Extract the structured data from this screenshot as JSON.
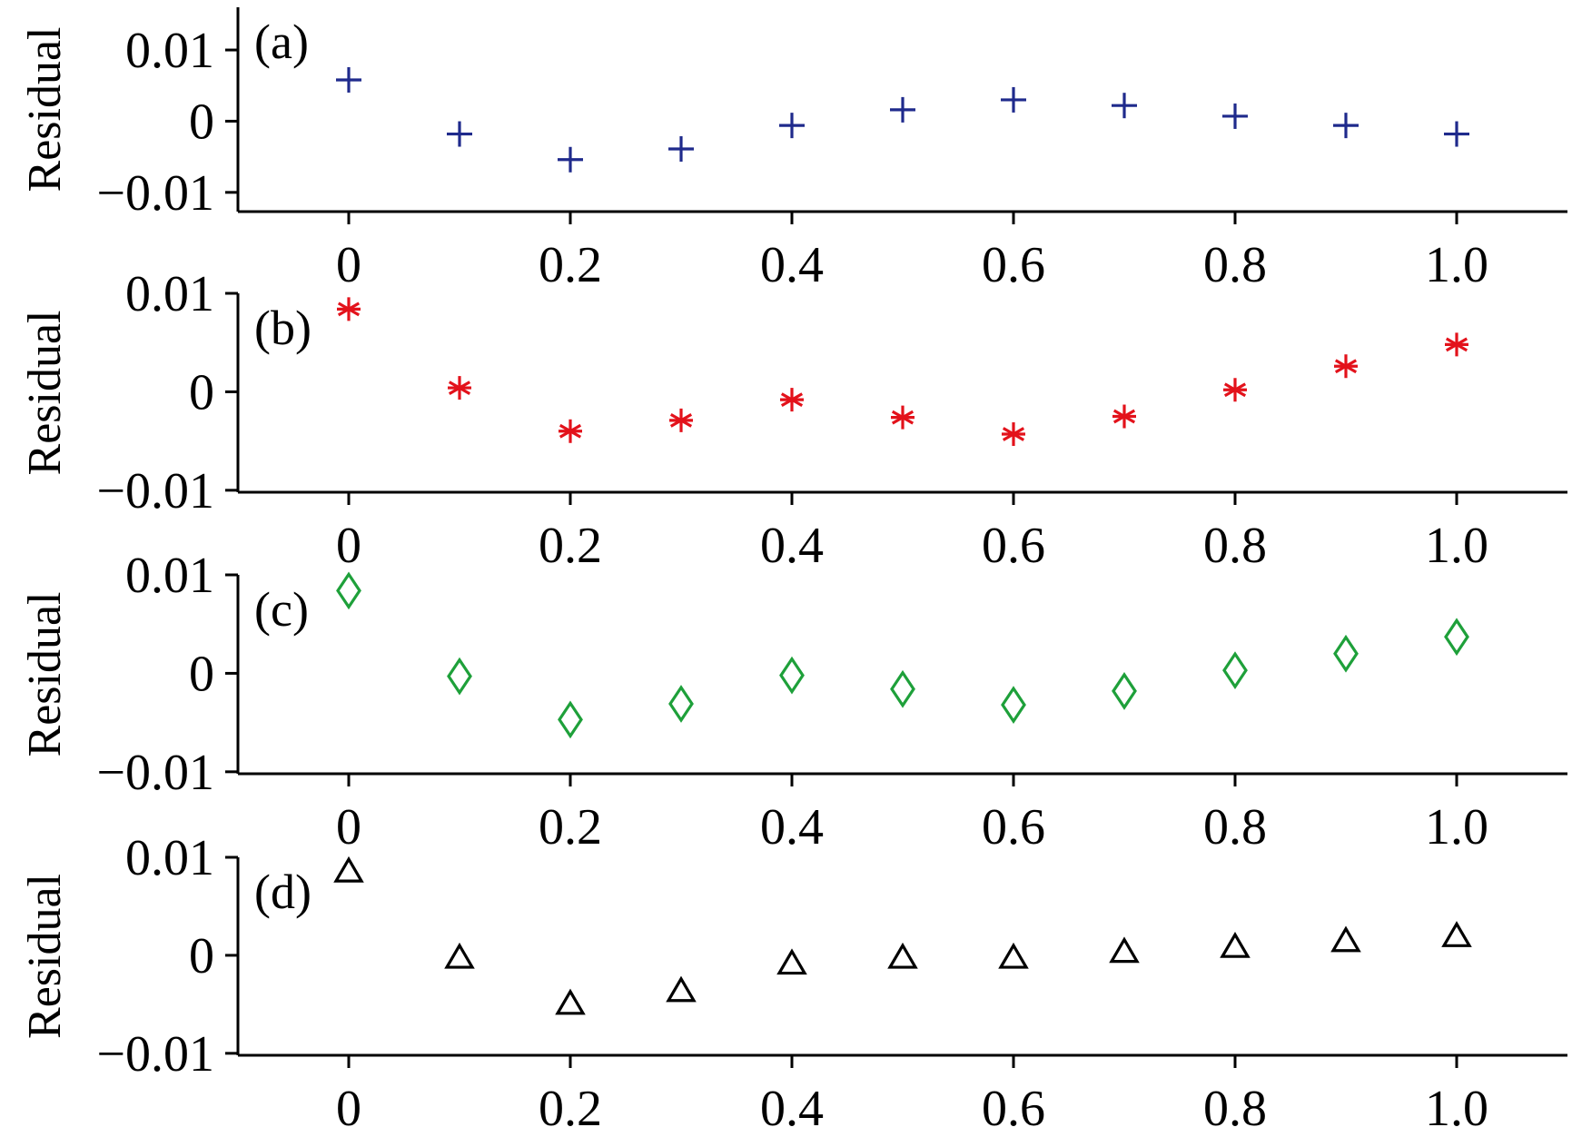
{
  "chart_data": [
    {
      "type": "scatter",
      "panel_label": "(a)",
      "ylabel": "Residual",
      "marker": "plus",
      "color": "#1f2a8c",
      "x": [
        0,
        0.1,
        0.2,
        0.3,
        0.4,
        0.5,
        0.6,
        0.7,
        0.8,
        0.9,
        1.0
      ],
      "y": [
        0.0058,
        -0.0018,
        -0.0054,
        -0.0039,
        -0.0006,
        0.0016,
        0.003,
        0.0022,
        0.0007,
        -0.0006,
        -0.0018
      ],
      "xlim": [
        -0.1,
        1.1
      ],
      "ylim": [
        -0.0127,
        0.016
      ],
      "xticks": [
        0,
        0.2,
        0.4,
        0.6,
        0.8,
        1.0
      ],
      "xtick_labels": [
        "0",
        "0.2",
        "0.4",
        "0.6",
        "0.8",
        "1.0"
      ],
      "yticks": [
        0.01,
        0,
        -0.01
      ],
      "ytick_labels": [
        "0.01",
        "0",
        "−0.01"
      ],
      "grid": false
    },
    {
      "type": "scatter",
      "panel_label": "(b)",
      "ylabel": "Residual",
      "marker": "asterisk",
      "color": "#e3121b",
      "x": [
        0,
        0.1,
        0.2,
        0.3,
        0.4,
        0.5,
        0.6,
        0.7,
        0.8,
        0.9,
        1.0
      ],
      "y": [
        0.0084,
        0.0004,
        -0.004,
        -0.0029,
        -0.0008,
        -0.0026,
        -0.0043,
        -0.0025,
        0.0002,
        0.0026,
        0.0048
      ],
      "xlim": [
        -0.1,
        1.1
      ],
      "ylim": [
        -0.0102,
        0.01
      ],
      "xticks": [
        0,
        0.2,
        0.4,
        0.6,
        0.8,
        1.0
      ],
      "xtick_labels": [
        "0",
        "0.2",
        "0.4",
        "0.6",
        "0.8",
        "1.0"
      ],
      "yticks": [
        0.01,
        0,
        -0.01
      ],
      "ytick_labels": [
        "0.01",
        "0",
        "−0.01"
      ],
      "grid": false
    },
    {
      "type": "scatter",
      "panel_label": "(c)",
      "ylabel": "Residual",
      "marker": "diamond",
      "color": "#1ea03a",
      "x": [
        0,
        0.1,
        0.2,
        0.3,
        0.4,
        0.5,
        0.6,
        0.7,
        0.8,
        0.9,
        1.0
      ],
      "y": [
        0.0084,
        -0.0003,
        -0.0047,
        -0.0031,
        -0.0002,
        -0.0016,
        -0.0032,
        -0.0018,
        0.0003,
        0.002,
        0.0037
      ],
      "xlim": [
        -0.1,
        1.1
      ],
      "ylim": [
        -0.0102,
        0.01
      ],
      "xticks": [
        0,
        0.2,
        0.4,
        0.6,
        0.8,
        1.0
      ],
      "xtick_labels": [
        "0",
        "0.2",
        "0.4",
        "0.6",
        "0.8",
        "1.0"
      ],
      "yticks": [
        0.01,
        0,
        -0.01
      ],
      "ytick_labels": [
        "0.01",
        "0",
        "−0.01"
      ],
      "grid": false
    },
    {
      "type": "scatter",
      "panel_label": "(d)",
      "ylabel": "Residual",
      "marker": "triangle",
      "color": "#000000",
      "x": [
        0,
        0.1,
        0.2,
        0.3,
        0.4,
        0.5,
        0.6,
        0.7,
        0.8,
        0.9,
        1.0
      ],
      "y": [
        0.0086,
        -0.0002,
        -0.0049,
        -0.0036,
        -0.0008,
        -0.0002,
        -0.0002,
        0.0004,
        0.0009,
        0.0015,
        0.002
      ],
      "xlim": [
        -0.1,
        1.1
      ],
      "ylim": [
        -0.0102,
        0.01
      ],
      "xticks": [
        0,
        0.2,
        0.4,
        0.6,
        0.8,
        1.0
      ],
      "xtick_labels": [
        "0",
        "0.2",
        "0.4",
        "0.6",
        "0.8",
        "1.0"
      ],
      "yticks": [
        0.01,
        0,
        -0.01
      ],
      "ytick_labels": [
        "0.01",
        "0",
        "−0.01"
      ],
      "grid": false
    }
  ]
}
